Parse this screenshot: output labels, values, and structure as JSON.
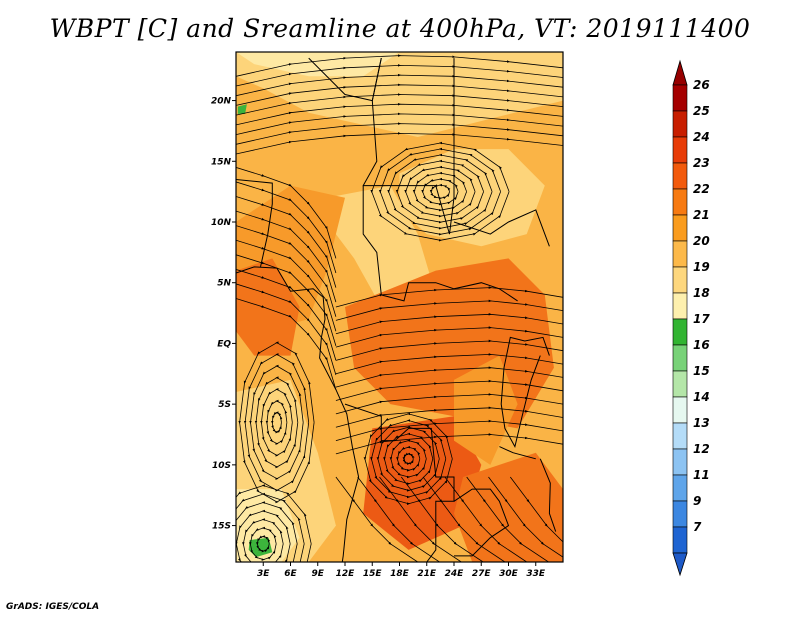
{
  "title": "WBPT [C] and Sreamline at 400hPa, VT: 2019111400",
  "credit": "GrADS: IGES/COLA",
  "map": {
    "lon_range": [
      0,
      36
    ],
    "lat_range": [
      -18,
      24
    ],
    "lat_ticks": [
      {
        "value": 20,
        "label": "20N"
      },
      {
        "value": 15,
        "label": "15N"
      },
      {
        "value": 10,
        "label": "10N"
      },
      {
        "value": 5,
        "label": "5N"
      },
      {
        "value": 0,
        "label": "EQ"
      },
      {
        "value": -5,
        "label": "5S"
      },
      {
        "value": -10,
        "label": "10S"
      },
      {
        "value": -15,
        "label": "15S"
      }
    ],
    "lon_ticks": [
      {
        "value": 3,
        "label": "3E"
      },
      {
        "value": 6,
        "label": "6E"
      },
      {
        "value": 9,
        "label": "9E"
      },
      {
        "value": 12,
        "label": "12E"
      },
      {
        "value": 15,
        "label": "15E"
      },
      {
        "value": 18,
        "label": "18E"
      },
      {
        "value": 21,
        "label": "21E"
      },
      {
        "value": 24,
        "label": "24E"
      },
      {
        "value": 27,
        "label": "27E"
      },
      {
        "value": 30,
        "label": "30E"
      },
      {
        "value": 33,
        "label": "33E"
      }
    ]
  },
  "colorbar": {
    "levels": [
      {
        "label": "26",
        "color": "#a50000"
      },
      {
        "label": "25",
        "color": "#c81e00"
      },
      {
        "label": "24",
        "color": "#e83c08"
      },
      {
        "label": "23",
        "color": "#f25a0c"
      },
      {
        "label": "22",
        "color": "#f77a12"
      },
      {
        "label": "21",
        "color": "#fa9c1e"
      },
      {
        "label": "20",
        "color": "#fcb94a"
      },
      {
        "label": "19",
        "color": "#fdd77e"
      },
      {
        "label": "18",
        "color": "#fef0ae"
      },
      {
        "label": "17",
        "color": "#32b432"
      },
      {
        "label": "16",
        "color": "#78d278"
      },
      {
        "label": "15",
        "color": "#b4e6a8"
      },
      {
        "label": "14",
        "color": "#e6f8f0"
      },
      {
        "label": "13",
        "color": "#b4dcf8"
      },
      {
        "label": "12",
        "color": "#8cc3f2"
      },
      {
        "label": "11",
        "color": "#5fa5ea"
      },
      {
        "label": "9",
        "color": "#3c87e1"
      },
      {
        "label": "7",
        "color": "#1e64d2"
      }
    ],
    "top_arrow_color": "#960000",
    "bottom_arrow_color": "#1e5ac8"
  },
  "field_colors": {
    "background": "#fab446",
    "light": "#fdd47a",
    "pale": "#fee9a4",
    "warm": "#f79a2a",
    "hot": "#f2741a",
    "hotter": "#ec5a14",
    "green": "#3cb43c"
  }
}
